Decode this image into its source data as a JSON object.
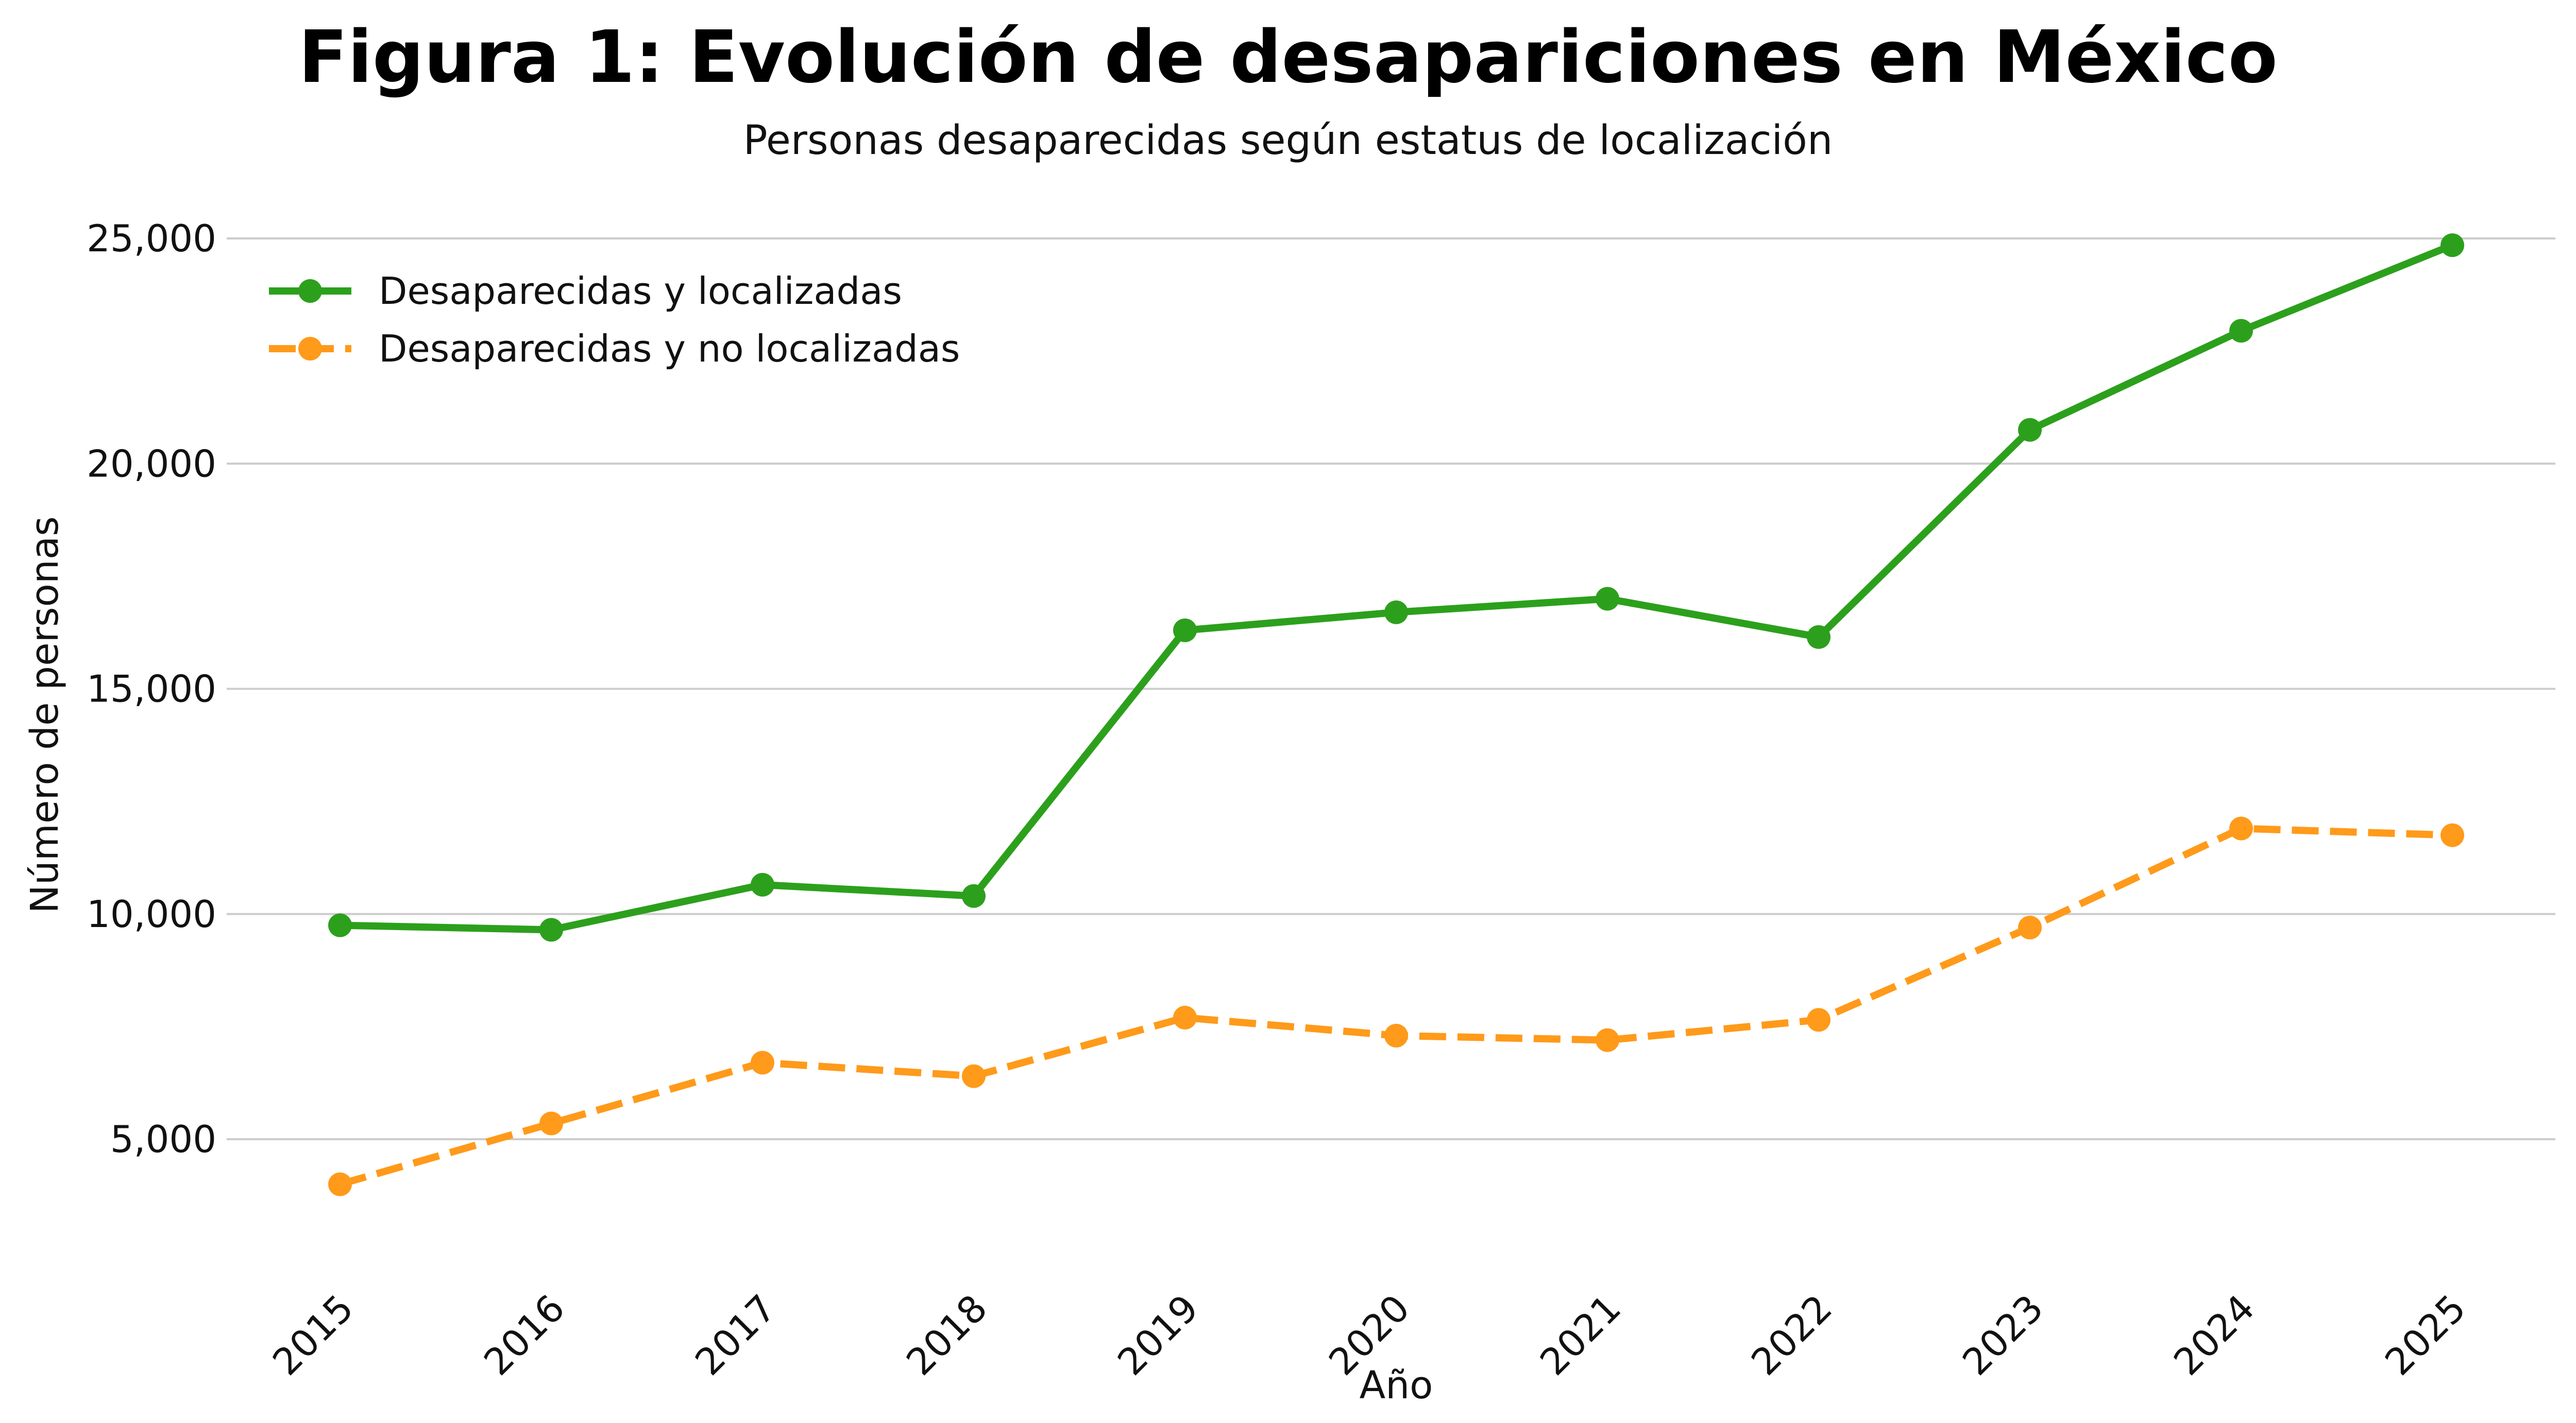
{
  "chart_data": {
    "type": "line",
    "title": "Figura 1: Evolución de desapariciones en México",
    "subtitle": "Personas desaparecidas según estatus de localización",
    "xlabel": "Año",
    "ylabel": "Número de personas",
    "x": [
      "2015",
      "2016",
      "2017",
      "2018",
      "2019",
      "2020",
      "2021",
      "2022",
      "2023",
      "2024",
      "2025"
    ],
    "ylim": [
      3000,
      25500
    ],
    "yticks": [
      5000,
      10000,
      15000,
      20000,
      25000
    ],
    "ytick_labels": [
      "5,000",
      "10,000",
      "15,000",
      "20,000",
      "25,000"
    ],
    "grid": "horizontal",
    "legend_position": "top-left",
    "series": [
      {
        "name": "Desaparecidas y localizadas",
        "color": "#2ca01c",
        "style": "solid",
        "values": [
          9750,
          9650,
          10650,
          10400,
          16300,
          16700,
          17000,
          16150,
          20750,
          22950,
          24850
        ]
      },
      {
        "name": "Desaparecidas y no localizadas",
        "color": "#ff9a1a",
        "style": "dashed",
        "values": [
          4000,
          5350,
          6700,
          6400,
          7700,
          7300,
          7200,
          7650,
          9700,
          11900,
          11750
        ]
      }
    ]
  }
}
